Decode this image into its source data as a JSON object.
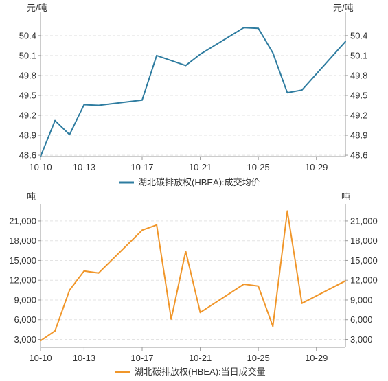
{
  "chart_data": [
    {
      "type": "line",
      "title": "",
      "ylabel": "元/吨",
      "xlabel": "",
      "x": [
        "10-10",
        "10-11",
        "10-12",
        "10-13",
        "10-14",
        "10-17",
        "10-18",
        "10-20",
        "10-21",
        "10-24",
        "10-25",
        "10-26",
        "10-27",
        "10-28",
        "10-31"
      ],
      "x_tick_labels": [
        "10-10",
        "10-13",
        "10-17",
        "10-21",
        "10-25",
        "10-29"
      ],
      "series": [
        {
          "name": "湖北碳排放权(HBEA):成交均价",
          "color": "#2e7ca0",
          "values": [
            48.58,
            49.12,
            48.91,
            49.36,
            49.35,
            49.43,
            50.1,
            49.95,
            50.12,
            50.52,
            50.51,
            50.14,
            49.54,
            49.58,
            50.31
          ]
        }
      ],
      "yticks": [
        48.6,
        48.9,
        49.2,
        49.5,
        49.8,
        50.1,
        50.4
      ],
      "ytick_labels": [
        "48.6",
        "48.9",
        "49.2",
        "49.5",
        "49.8",
        "50.1",
        "50.4"
      ],
      "ylim": [
        48.58,
        50.75
      ],
      "grid": true,
      "legend": "bottom"
    },
    {
      "type": "line",
      "title": "",
      "ylabel": "吨",
      "xlabel": "",
      "x": [
        "10-10",
        "10-11",
        "10-12",
        "10-13",
        "10-14",
        "10-17",
        "10-18",
        "10-19",
        "10-20",
        "10-21",
        "10-24",
        "10-25",
        "10-26",
        "10-27",
        "10-28",
        "10-31"
      ],
      "x_tick_labels": [
        "10-10",
        "10-13",
        "10-17",
        "10-21",
        "10-25",
        "10-29"
      ],
      "series": [
        {
          "name": "湖北碳排放权(HBEA):当日成交量",
          "color": "#f0962a",
          "values": [
            2800,
            4300,
            10500,
            13400,
            13100,
            19600,
            20400,
            6100,
            16400,
            7100,
            11400,
            11100,
            5000,
            22500,
            8500,
            11900
          ]
        }
      ],
      "yticks": [
        3000,
        6000,
        9000,
        12000,
        15000,
        18000,
        21000
      ],
      "ytick_labels": [
        "3,000",
        "6,000",
        "9,000",
        "12,000",
        "15,000",
        "18,000",
        "21,000"
      ],
      "ylim": [
        1800,
        23600
      ],
      "grid": true,
      "legend": "bottom"
    }
  ]
}
